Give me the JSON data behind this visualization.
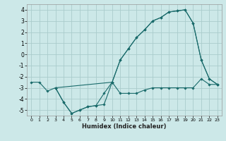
{
  "xlabel": "Humidex (Indice chaleur)",
  "bg_color": "#cce8e8",
  "grid_color": "#aacccc",
  "line_color": "#1a6b6b",
  "xlim": [
    -0.5,
    23.5
  ],
  "ylim": [
    -5.5,
    4.5
  ],
  "yticks": [
    -5,
    -4,
    -3,
    -2,
    -1,
    0,
    1,
    2,
    3,
    4
  ],
  "xticks": [
    0,
    1,
    2,
    3,
    4,
    5,
    6,
    7,
    8,
    9,
    10,
    11,
    12,
    13,
    14,
    15,
    16,
    17,
    18,
    19,
    20,
    21,
    22,
    23
  ],
  "series": [
    {
      "x": [
        0,
        1,
        2,
        3,
        4,
        5,
        6,
        7,
        8,
        9,
        10,
        11,
        12,
        13,
        14,
        15,
        16,
        17,
        18,
        19,
        20,
        21,
        22,
        23
      ],
      "y": [
        -2.5,
        -2.5,
        -3.3,
        -3.0,
        -4.3,
        -5.3,
        -5.0,
        -4.7,
        -4.6,
        -4.5,
        -2.5,
        -3.5,
        -3.5,
        -3.5,
        -3.2,
        -3.0,
        -3.0,
        -3.0,
        -3.0,
        -3.0,
        -3.0,
        -2.2,
        -2.7,
        -2.7
      ]
    },
    {
      "x": [
        3,
        10,
        11,
        12,
        13,
        14,
        15,
        16,
        17,
        18,
        19,
        20,
        21,
        22,
        23
      ],
      "y": [
        -3.0,
        -2.5,
        -0.5,
        0.5,
        1.5,
        2.2,
        3.0,
        3.3,
        3.8,
        3.9,
        4.0,
        2.8,
        -0.5,
        -2.2,
        -2.7
      ]
    },
    {
      "x": [
        3,
        4,
        5,
        6,
        7,
        8,
        9,
        10,
        11,
        12,
        13,
        14,
        15,
        16,
        17,
        18,
        19,
        20,
        21,
        22,
        23
      ],
      "y": [
        -3.0,
        -4.3,
        -5.3,
        -5.0,
        -4.7,
        -4.6,
        -3.5,
        -2.5,
        -0.5,
        0.5,
        1.5,
        2.2,
        3.0,
        3.3,
        3.8,
        3.9,
        4.0,
        2.8,
        -0.5,
        -2.2,
        -2.7
      ]
    }
  ]
}
